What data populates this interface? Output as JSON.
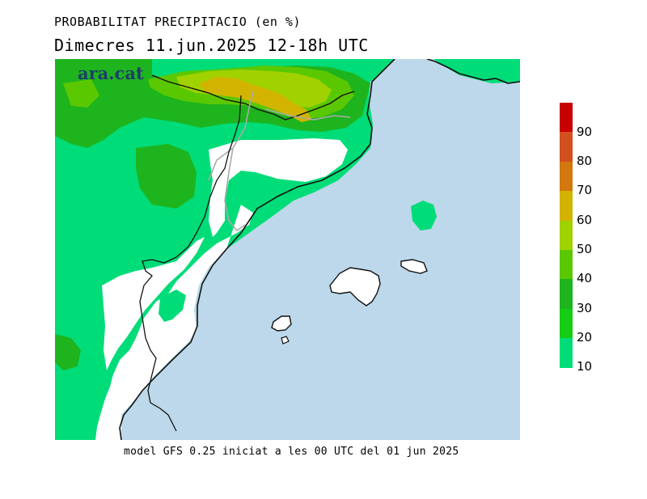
{
  "title_line1": "PROBABILITAT PRECIPITACIO (en %)",
  "title_line2": "Dimecres  11.jun.2025 12-18h UTC",
  "logo_text": "ara.cat",
  "footer": "model GFS 0.25 iniciat a les 00 UTC del 01 jun 2025",
  "legend": {
    "labels": [
      "90",
      "80",
      "70",
      "60",
      "50",
      "40",
      "30",
      "20",
      "10"
    ],
    "colors": [
      "#c80000",
      "#d2501e",
      "#d2780f",
      "#d2b400",
      "#a0d200",
      "#5ac800",
      "#1eb41e",
      "#14cd14",
      "#00dc78"
    ]
  },
  "colors": {
    "sea": "#bcd8ea",
    "land_low": "#00dc78",
    "p30": "#1eb41e",
    "p40": "#5ac800",
    "p50": "#a0d200",
    "p60": "#d2b400",
    "border": "#111111",
    "inner_border": "#aaaaaa"
  }
}
